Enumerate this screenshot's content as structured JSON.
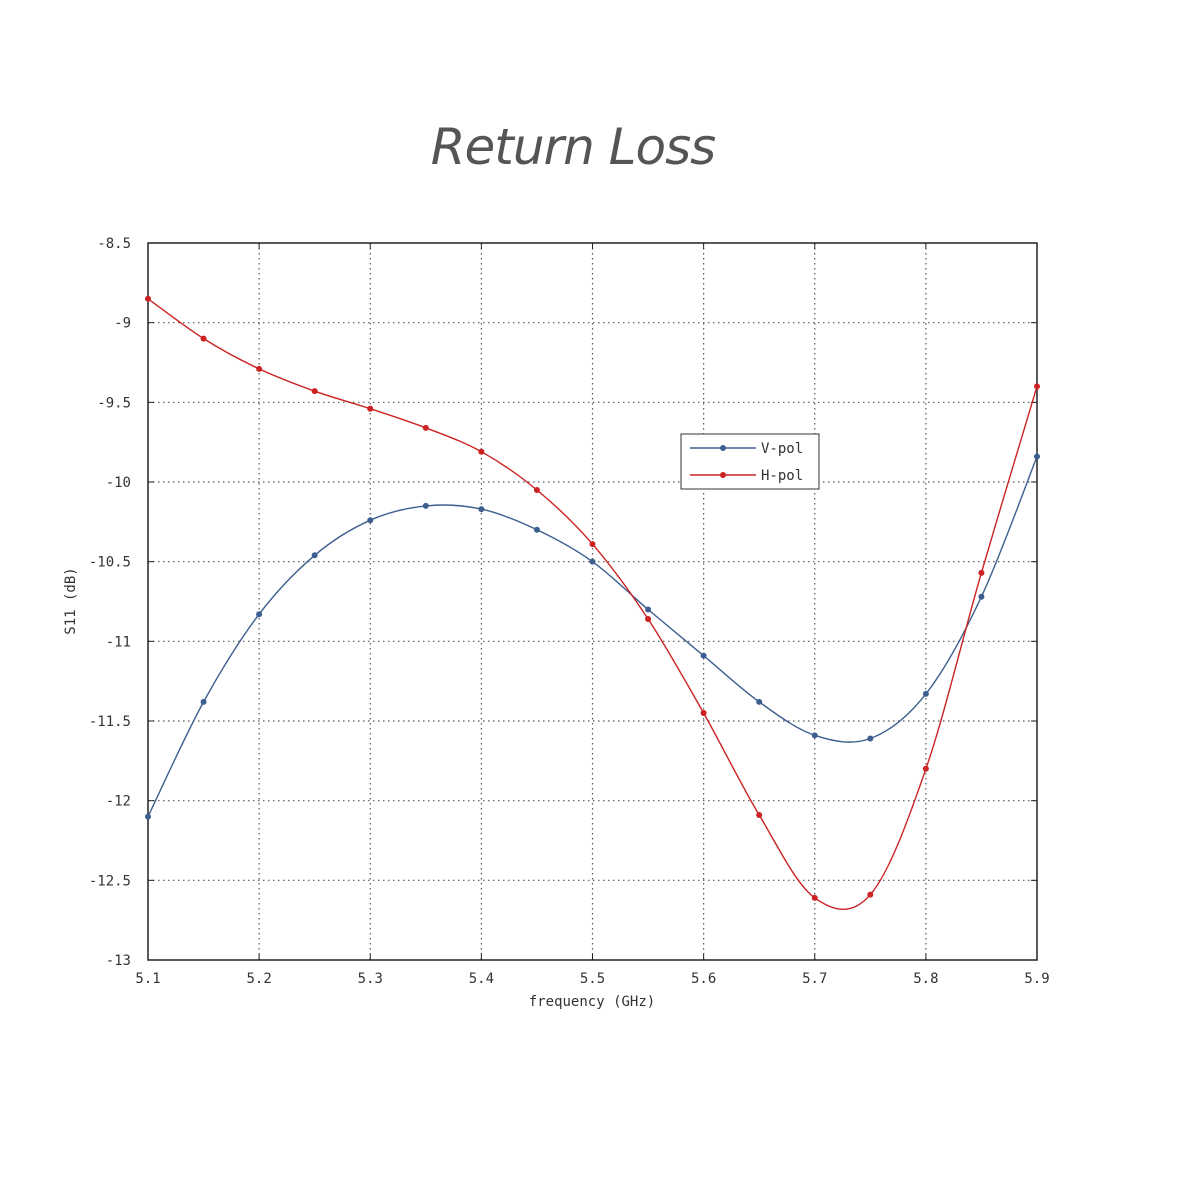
{
  "chart_data": {
    "type": "line",
    "title": "Return Loss",
    "xlabel": "frequency (GHz)",
    "ylabel": "S11 (dB)",
    "xlim": [
      5.1,
      5.9
    ],
    "ylim": [
      -13,
      -8.5
    ],
    "x_ticks": [
      5.1,
      5.2,
      5.3,
      5.4,
      5.5,
      5.6,
      5.7,
      5.8,
      5.9
    ],
    "x_tick_labels": [
      "5.1",
      "5.2",
      "5.3",
      "5.4",
      "5.5",
      "5.6",
      "5.7",
      "5.8",
      "5.9"
    ],
    "y_ticks": [
      -8.5,
      -9,
      -9.5,
      -10,
      -10.5,
      -11,
      -11.5,
      -12,
      -12.5,
      -13
    ],
    "y_tick_labels": [
      "-8.5",
      "-9",
      "-9.5",
      "-10",
      "-10.5",
      "-11",
      "-11.5",
      "-12",
      "-12.5",
      "-13"
    ],
    "grid": true,
    "legend_position": "center-right",
    "x": [
      5.1,
      5.15,
      5.2,
      5.25,
      5.3,
      5.35,
      5.4,
      5.45,
      5.5,
      5.55,
      5.6,
      5.65,
      5.7,
      5.75,
      5.8,
      5.85,
      5.9
    ],
    "series": [
      {
        "name": "V-pol",
        "color": "#3d5f8f",
        "values": [
          -12.1,
          -11.38,
          -10.83,
          -10.46,
          -10.24,
          -10.15,
          -10.17,
          -10.3,
          -10.5,
          -10.8,
          -11.09,
          -11.38,
          -11.59,
          -11.61,
          -11.33,
          -10.72,
          -9.84
        ]
      },
      {
        "name": "H-pol",
        "color": "#cc2222",
        "values": [
          -8.85,
          -9.1,
          -9.29,
          -9.43,
          -9.54,
          -9.66,
          -9.81,
          -10.05,
          -10.39,
          -10.86,
          -11.45,
          -12.09,
          -12.61,
          -12.59,
          -11.8,
          -10.57,
          -9.4
        ]
      }
    ]
  }
}
